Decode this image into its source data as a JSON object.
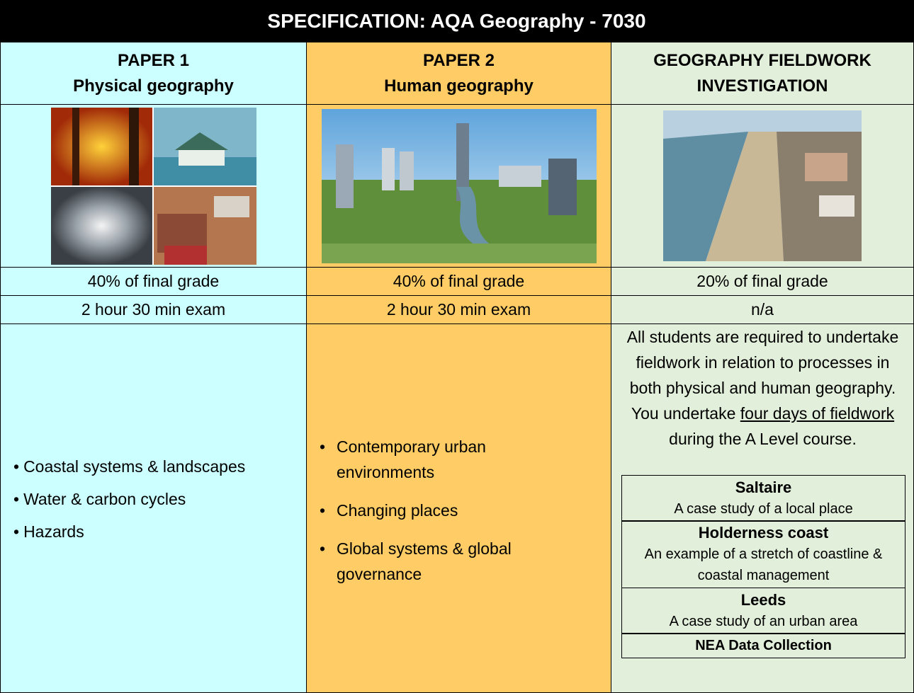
{
  "title": "SPECIFICATION: AQA Geography - 7030",
  "columns": [
    {
      "heading": [
        "PAPER 1",
        "Physical geography"
      ],
      "weighting": "40% of final grade",
      "assessment": "2 hour 30 min exam",
      "topics": [
        "Coastal systems & landscapes",
        "Water & carbon cycles",
        "Hazards"
      ]
    },
    {
      "heading": [
        "PAPER 2",
        "Human geography"
      ],
      "weighting": "40% of final grade",
      "assessment": "2 hour 30 min exam",
      "topics": [
        "Contemporary urban environments",
        "Changing places",
        "Global systems & global governance"
      ]
    },
    {
      "heading": [
        "GEOGRAPHY FIELDWORK",
        "INVESTIGATION"
      ],
      "weighting": "20% of final grade",
      "assessment": "n/a",
      "description": {
        "before": "All students are required to undertake fieldwork in relation to processes in both physical and human geography. You undertake",
        "underlined": "four days of fieldwork",
        "after": "during the A Level course."
      },
      "sites": [
        {
          "name": "Saltaire",
          "detail": "A case study of a local place"
        },
        {
          "name": "Holderness coast",
          "detail": "An example of a stretch of coastline & coastal management"
        },
        {
          "name": "Leeds",
          "detail": "A case study of an urban area"
        },
        {
          "name": "NEA Data Collection"
        }
      ]
    }
  ]
}
